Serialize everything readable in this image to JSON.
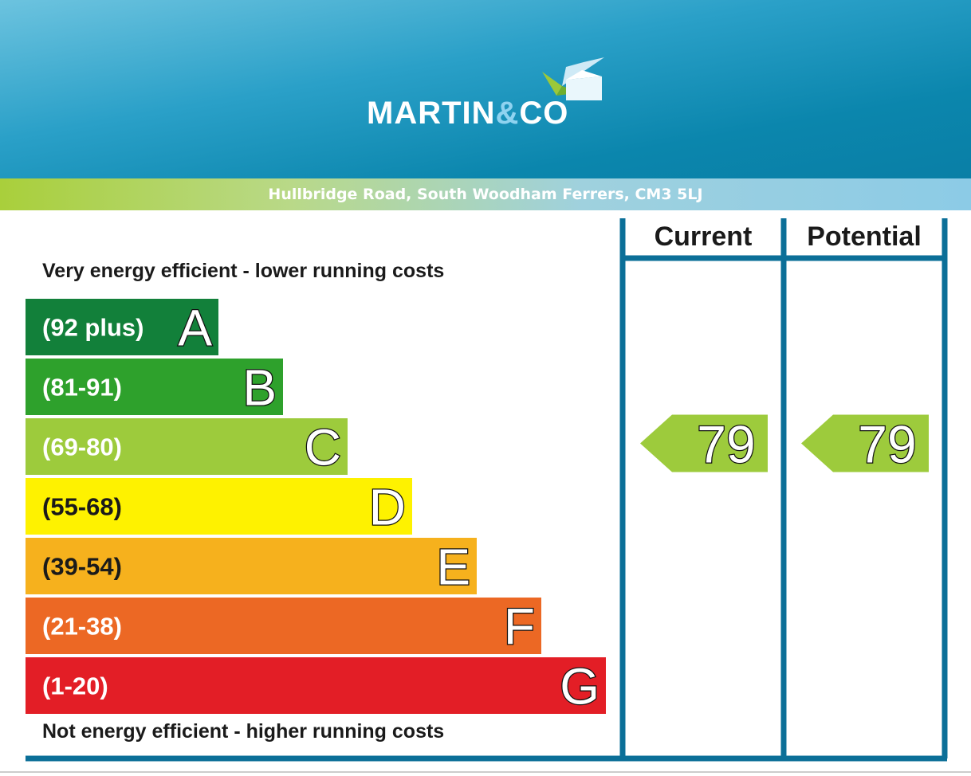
{
  "brand": {
    "name": "MARTIN",
    "amp": "&",
    "name2": "CO",
    "accent": "#8fd3f0",
    "header_color": "#0a86ad"
  },
  "address": "Hullbridge Road, South Woodham Ferrers, CM3 5LJ",
  "chart_data": {
    "type": "bar",
    "top_caption": "Very energy efficient - lower running costs",
    "bottom_caption": "Not energy efficient - higher running costs",
    "bands": [
      {
        "letter": "A",
        "range": "(92 plus)",
        "min": 92,
        "max": null,
        "color": "#12803a"
      },
      {
        "letter": "B",
        "range": "(81-91)",
        "min": 81,
        "max": 91,
        "color": "#2ea12c"
      },
      {
        "letter": "C",
        "range": "(69-80)",
        "min": 69,
        "max": 80,
        "color": "#9dcb3c"
      },
      {
        "letter": "D",
        "range": "(55-68)",
        "min": 55,
        "max": 68,
        "color": "#fef200"
      },
      {
        "letter": "E",
        "range": "(39-54)",
        "min": 39,
        "max": 54,
        "color": "#f6b11d"
      },
      {
        "letter": "F",
        "range": "(21-38)",
        "min": 21,
        "max": 38,
        "color": "#ec6824"
      },
      {
        "letter": "G",
        "range": "(1-20)",
        "min": 1,
        "max": 20,
        "color": "#e31e26"
      }
    ],
    "columns": [
      {
        "label": "Current",
        "value": 79,
        "band": "C"
      },
      {
        "label": "Potential",
        "value": 79,
        "band": "C"
      }
    ],
    "frame_color": "#0b6f98"
  }
}
